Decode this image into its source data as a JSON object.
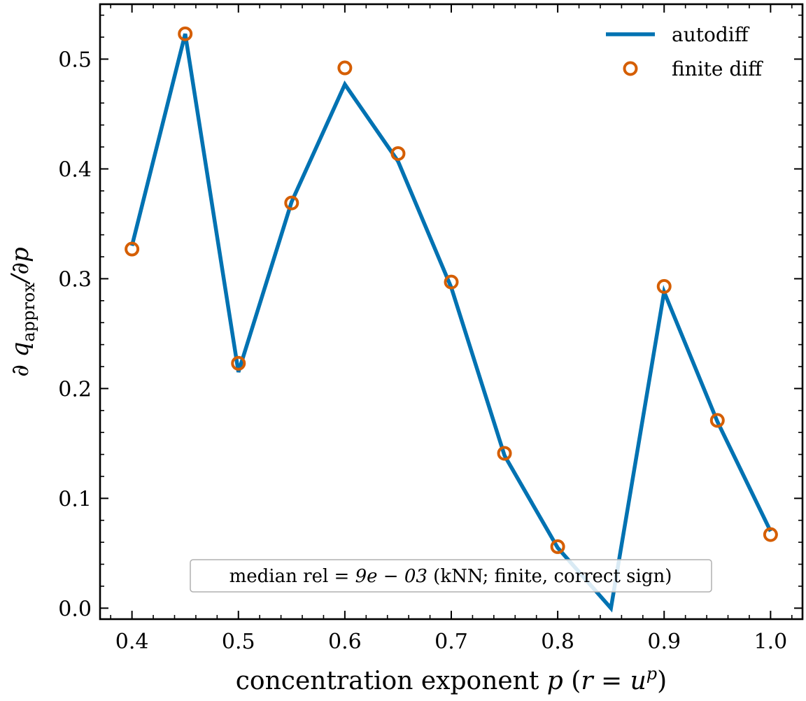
{
  "chart_data": {
    "type": "line",
    "xlabel": "concentration exponent p  (r = u^p)",
    "ylabel": "∂q_approx/∂p",
    "xlim": [
      0.37,
      1.03
    ],
    "ylim": [
      -0.01,
      0.55
    ],
    "xticks": [
      0.4,
      0.5,
      0.6,
      0.7,
      0.8,
      0.9,
      1.0
    ],
    "xtick_labels": [
      "0.4",
      "0.5",
      "0.6",
      "0.7",
      "0.8",
      "0.9",
      "1.0"
    ],
    "yticks": [
      0.0,
      0.1,
      0.2,
      0.3,
      0.4,
      0.5
    ],
    "ytick_labels": [
      "0.0",
      "0.1",
      "0.2",
      "0.3",
      "0.4",
      "0.5"
    ],
    "legend_position": "top-right",
    "grid": false,
    "series": [
      {
        "name": "autodiff",
        "style": "line",
        "color": "#0072b2",
        "x": [
          0.4,
          0.45,
          0.5,
          0.55,
          0.6,
          0.65,
          0.7,
          0.75,
          0.8,
          0.85,
          0.9,
          0.95,
          1.0
        ],
        "y": [
          0.33,
          0.523,
          0.215,
          0.37,
          0.477,
          0.407,
          0.292,
          0.139,
          0.055,
          0.0,
          0.288,
          0.17,
          0.07
        ]
      },
      {
        "name": "finite diff",
        "style": "markers",
        "color": "#d55e00",
        "x": [
          0.4,
          0.45,
          0.5,
          0.55,
          0.6,
          0.65,
          0.7,
          0.75,
          0.8,
          0.9,
          0.95,
          1.0
        ],
        "y": [
          0.327,
          0.523,
          0.223,
          0.369,
          0.492,
          0.414,
          0.297,
          0.141,
          0.056,
          0.293,
          0.171,
          0.067
        ]
      }
    ],
    "annotation": {
      "prefix": "median rel ",
      "math": "= 9e − 03",
      "suffix": " (kNN; finite, correct sign)"
    }
  }
}
